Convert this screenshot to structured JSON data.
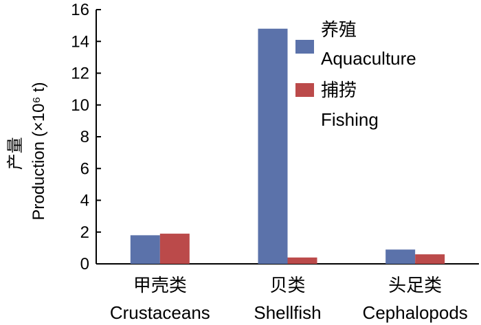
{
  "chart_data": {
    "type": "bar",
    "title": "",
    "ylabel_cn": "产量",
    "ylabel": "Production (×10⁶ t)",
    "ylim": [
      0,
      16
    ],
    "yticks": [
      "0",
      "2",
      "4",
      "6",
      "8",
      "10",
      "12",
      "14",
      "16"
    ],
    "grid": false,
    "legend_position": "top-right",
    "categories": [
      {
        "cn": "甲壳类",
        "en": "Crustaceans"
      },
      {
        "cn": "贝类",
        "en": "Shellfish"
      },
      {
        "cn": "头足类",
        "en": "Cephalopods"
      }
    ],
    "series": [
      {
        "name_cn": "养殖",
        "name": "Aquaculture",
        "color": "#5b72aa",
        "values": [
          1.8,
          14.8,
          0.9
        ]
      },
      {
        "name_cn": "捕捞",
        "name": "Fishing",
        "color": "#bb4a4a",
        "values": [
          1.9,
          0.4,
          0.6
        ]
      }
    ]
  }
}
